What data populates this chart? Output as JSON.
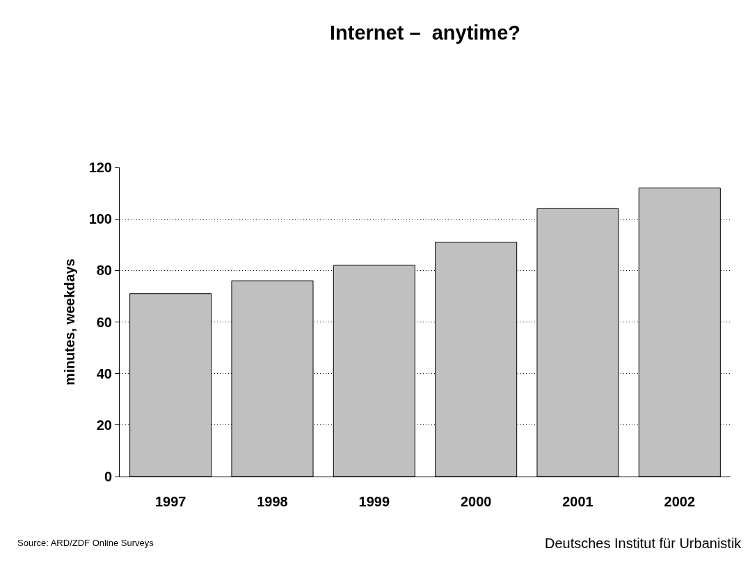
{
  "chart_data": {
    "type": "bar",
    "title": "Internet –  anytime?",
    "ylabel": "minutes, weekdays",
    "categories": [
      "1997",
      "1998",
      "1999",
      "2000",
      "2001",
      "2002"
    ],
    "values": [
      71,
      76,
      82,
      91,
      104,
      112
    ],
    "color": "#c0c0c0",
    "ylim": [
      0,
      120
    ],
    "yticks": [
      0,
      20,
      40,
      60,
      80,
      100,
      120
    ],
    "grid": "y",
    "annotations": [
      "Source: ARD/ZDF Online Surveys",
      "Deutsches Institut für Urbanistik"
    ]
  }
}
